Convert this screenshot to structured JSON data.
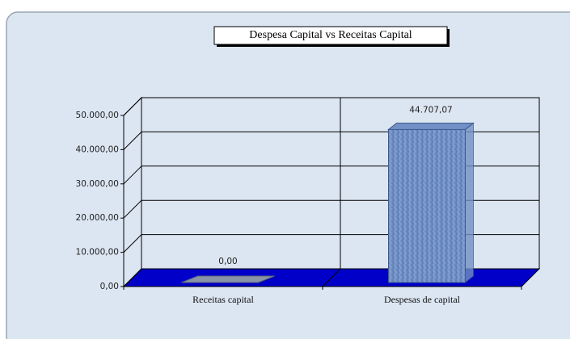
{
  "chart_data": {
    "type": "bar3d",
    "title": "Despesa Capital vs Receitas Capital",
    "categories": [
      "Receitas capital",
      "Despesas de capital"
    ],
    "values": [
      0,
      44707.07
    ],
    "value_labels": [
      "0,00",
      "44.707,07"
    ],
    "color": "#7290c6",
    "ylim": [
      0,
      50000
    ],
    "yticks": [
      {
        "value": 0,
        "label": "0,00"
      },
      {
        "value": 10000,
        "label": "10.000,00"
      },
      {
        "value": 20000,
        "label": "20.000,00"
      },
      {
        "value": 30000,
        "label": "30.000,00"
      },
      {
        "value": 40000,
        "label": "40.000,00"
      },
      {
        "value": 50000,
        "label": "50.000,00"
      }
    ],
    "grid": true
  }
}
